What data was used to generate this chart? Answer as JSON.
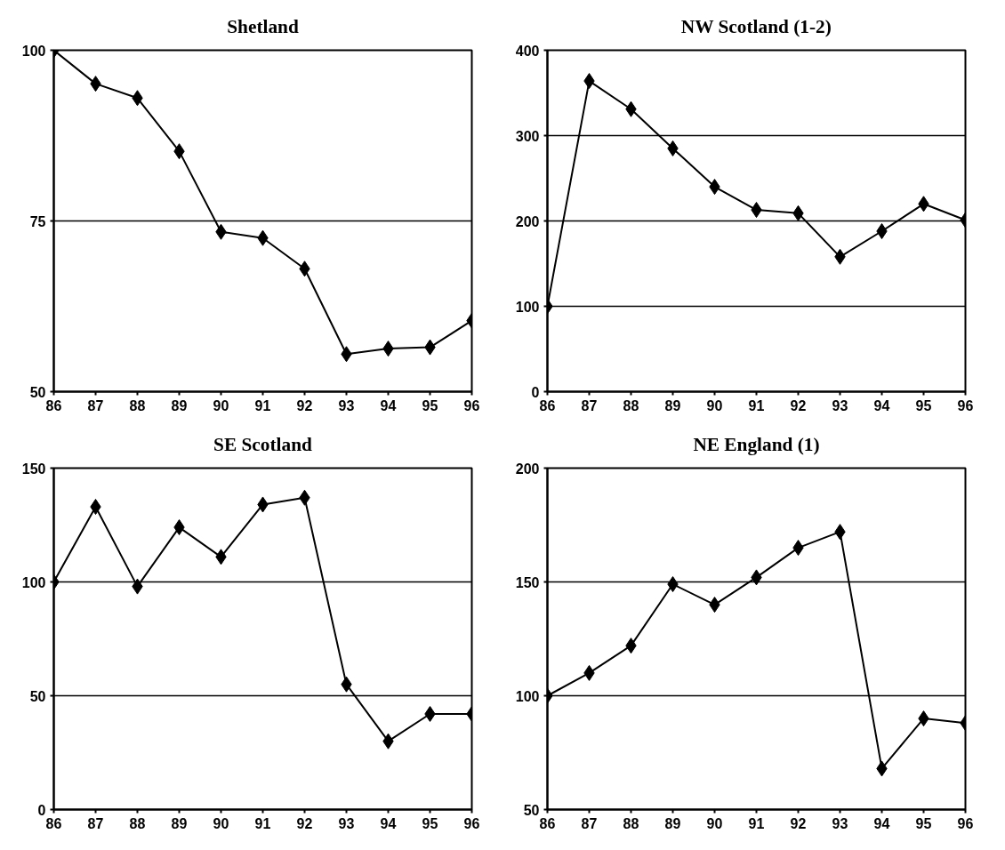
{
  "chart_data": [
    {
      "type": "line",
      "title": "Shetland",
      "categories": [
        "86",
        "87",
        "88",
        "89",
        "90",
        "91",
        "92",
        "93",
        "94",
        "95",
        "96"
      ],
      "series": [
        {
          "color": "#000000",
          "values": [
            100,
            95.1,
            93.0,
            85.2,
            73.4,
            72.5,
            68.0,
            55.5,
            56.3,
            56.5,
            60.4
          ]
        }
      ],
      "ylim": [
        50,
        100
      ],
      "yticks": [
        50,
        75,
        100
      ],
      "grid": "y",
      "marker": "diamond",
      "line_style": "solid"
    },
    {
      "type": "line",
      "title": "NW Scotland (1-2)",
      "categories": [
        "86",
        "87",
        "88",
        "89",
        "90",
        "91",
        "92",
        "93",
        "94",
        "95",
        "96"
      ],
      "series": [
        {
          "color": "#000000",
          "values": [
            100,
            364,
            331,
            285,
            240,
            213,
            209,
            158,
            188,
            220,
            201
          ]
        }
      ],
      "ylim": [
        0,
        400
      ],
      "yticks": [
        0,
        100,
        200,
        300,
        400
      ],
      "grid": "y",
      "marker": "diamond",
      "line_style": "solid"
    },
    {
      "type": "line",
      "title": "SE Scotland",
      "categories": [
        "86",
        "87",
        "88",
        "89",
        "90",
        "91",
        "92",
        "93",
        "94",
        "95",
        "96"
      ],
      "series": [
        {
          "color": "#000000",
          "values": [
            100,
            133,
            98,
            124,
            111,
            134,
            137,
            55,
            30,
            42,
            42
          ]
        }
      ],
      "ylim": [
        0,
        150
      ],
      "yticks": [
        0,
        50,
        100,
        150
      ],
      "grid": "y",
      "marker": "diamond",
      "line_style": "solid"
    },
    {
      "type": "line",
      "title": "NE England (1)",
      "categories": [
        "86",
        "87",
        "88",
        "89",
        "90",
        "91",
        "92",
        "93",
        "94",
        "95",
        "96"
      ],
      "series": [
        {
          "color": "#000000",
          "values": [
            100,
            110,
            122,
            149,
            140,
            152,
            165,
            172,
            68,
            90,
            88
          ]
        }
      ],
      "ylim": [
        50,
        200
      ],
      "yticks": [
        50,
        100,
        150,
        200
      ],
      "grid": "y",
      "marker": "diamond",
      "line_style": "solid"
    }
  ]
}
